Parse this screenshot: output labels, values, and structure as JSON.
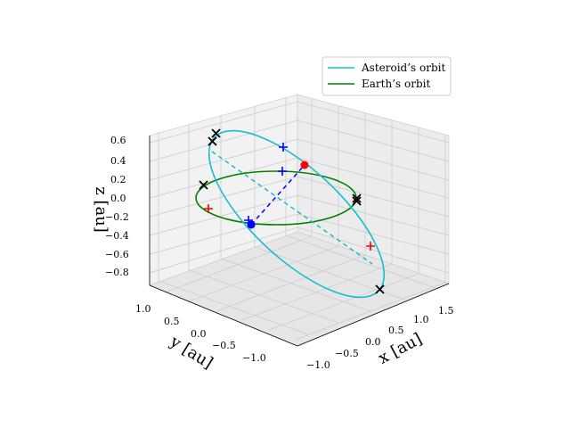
{
  "chart_data": {
    "type": "3d-line",
    "xlabel": "x [au]",
    "ylabel": "y [au]",
    "zlabel": "z [au]",
    "x_ticks": [
      "−1.0",
      "−0.5",
      "0.0",
      "0.5",
      "1.0",
      "1.5"
    ],
    "y_ticks": [
      "1.0",
      "0.5",
      "0.0",
      "−0.5",
      "−1.0"
    ],
    "z_ticks": [
      "0.6",
      "0.4",
      "0.2",
      "0.0",
      "−0.2",
      "−0.4",
      "−0.6",
      "−0.8"
    ],
    "grid": true,
    "legend_position": "top-right",
    "legend": [
      {
        "label": "Asteroid’s orbit",
        "color": "#17becf"
      },
      {
        "label": "Earth’s orbit",
        "color": "#008000"
      }
    ],
    "series": [
      {
        "name": "Asteroid’s orbit",
        "color": "#17becf",
        "kind": "ellipse"
      },
      {
        "name": "Earth’s orbit",
        "color": "#008000",
        "kind": "circle"
      }
    ],
    "markers": {
      "black_x_count": 6,
      "red_plus_count": 2,
      "blue_plus_count": 3,
      "red_dot": 1,
      "blue_dot": 1
    }
  }
}
